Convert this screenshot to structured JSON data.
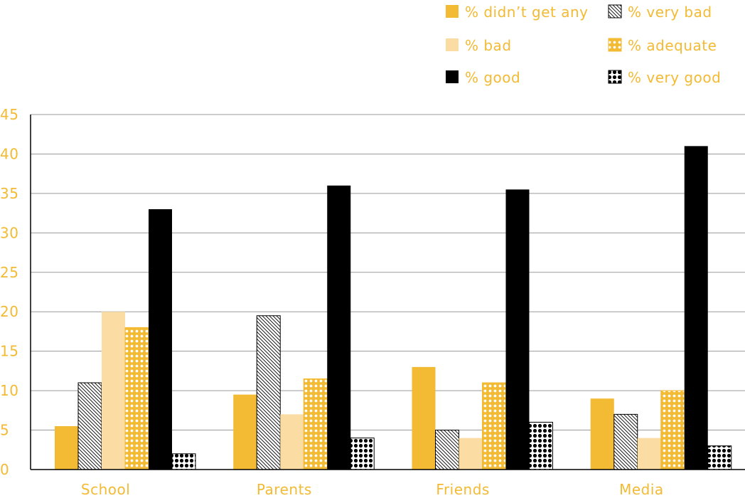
{
  "chart_data": {
    "type": "bar",
    "categories": [
      "School",
      "Parents",
      "Friends",
      "Media"
    ],
    "series": [
      {
        "name": "% didn’t get any",
        "values": [
          5.5,
          9.5,
          13,
          9
        ],
        "color": "#F3BA33",
        "pattern": "solid"
      },
      {
        "name": "% very bad",
        "values": [
          11,
          19.5,
          5,
          7
        ],
        "color": "#ffffff",
        "pattern": "diagonal-hatch"
      },
      {
        "name": "% bad",
        "values": [
          20,
          7,
          4,
          4
        ],
        "color": "#FBDDA4",
        "pattern": "solid"
      },
      {
        "name": "% adequate",
        "values": [
          18,
          11.5,
          11,
          10
        ],
        "color": "#F3BA33",
        "pattern": "white-dots"
      },
      {
        "name": "% good",
        "values": [
          33,
          36,
          35.5,
          41
        ],
        "color": "#000000",
        "pattern": "solid"
      },
      {
        "name": "% very good",
        "values": [
          2,
          4,
          6,
          3
        ],
        "color": "#000000",
        "pattern": "white-dots-on-black"
      }
    ],
    "ylim": [
      0,
      45
    ],
    "yticks": [
      "0",
      "5",
      "10",
      "15",
      "20",
      "25",
      "30",
      "35",
      "40",
      "45"
    ],
    "grid": true,
    "legend_position": "top-right",
    "text_color": "#F3BA33",
    "title": "",
    "xlabel": "",
    "ylabel": ""
  }
}
